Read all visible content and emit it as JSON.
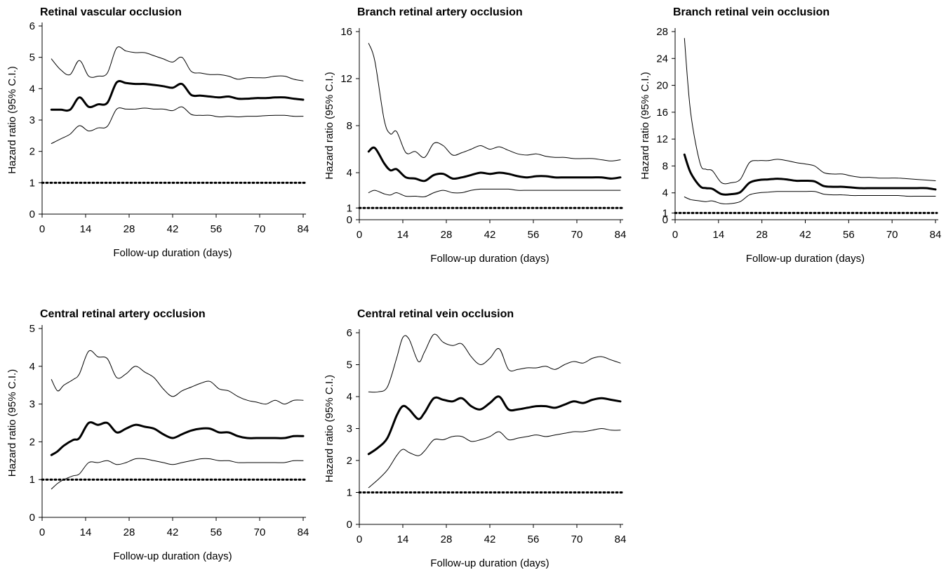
{
  "chart_data": [
    {
      "type": "line",
      "title": "Retinal vascular occlusion",
      "xlabel": "Follow-up duration (days)",
      "ylabel": "Hazard ratio (95% C.I.)",
      "xlim": [
        0,
        84
      ],
      "ylim": [
        0,
        6
      ],
      "xticks": [
        0,
        14,
        28,
        42,
        56,
        70,
        84
      ],
      "yticks": [
        0,
        1,
        2,
        3,
        4,
        5,
        6
      ],
      "reference_line": 1,
      "grid": false,
      "x": [
        3,
        6,
        9,
        12,
        15,
        18,
        21,
        24,
        27,
        30,
        33,
        36,
        39,
        42,
        45,
        48,
        51,
        54,
        57,
        60,
        63,
        66,
        69,
        72,
        75,
        78,
        81,
        84
      ],
      "series": [
        {
          "values": [
            4.95,
            4.6,
            4.45,
            4.9,
            4.4,
            4.4,
            4.5,
            5.3,
            5.2,
            5.15,
            5.15,
            5.05,
            4.95,
            4.85,
            5.0,
            4.55,
            4.5,
            4.45,
            4.45,
            4.4,
            4.3,
            4.35,
            4.35,
            4.35,
            4.4,
            4.4,
            4.3,
            4.25
          ]
        },
        {
          "values": [
            3.33,
            3.33,
            3.33,
            3.72,
            3.42,
            3.5,
            3.55,
            4.2,
            4.18,
            4.15,
            4.15,
            4.12,
            4.08,
            4.03,
            4.15,
            3.8,
            3.78,
            3.75,
            3.72,
            3.75,
            3.68,
            3.68,
            3.7,
            3.7,
            3.72,
            3.72,
            3.68,
            3.65
          ]
        },
        {
          "values": [
            2.25,
            2.4,
            2.55,
            2.82,
            2.65,
            2.75,
            2.8,
            3.35,
            3.35,
            3.35,
            3.38,
            3.35,
            3.35,
            3.3,
            3.42,
            3.18,
            3.15,
            3.15,
            3.1,
            3.12,
            3.1,
            3.12,
            3.12,
            3.14,
            3.15,
            3.15,
            3.12,
            3.12
          ]
        }
      ]
    },
    {
      "type": "line",
      "title": "Branch retinal artery occlusion",
      "xlabel": "Follow-up duration (days)",
      "ylabel": "Hazard ratio (95% C.I.)",
      "xlim": [
        0,
        84
      ],
      "ylim": [
        0,
        16
      ],
      "xticks": [
        0,
        14,
        28,
        42,
        56,
        70,
        84
      ],
      "yticks": [
        0,
        1,
        4,
        8,
        12,
        16
      ],
      "reference_line": 1,
      "grid": false,
      "x": [
        3,
        5,
        8,
        10,
        12,
        15,
        18,
        21,
        24,
        27,
        30,
        33,
        36,
        39,
        42,
        45,
        48,
        51,
        54,
        57,
        60,
        63,
        66,
        69,
        72,
        75,
        78,
        81,
        84
      ],
      "series": [
        {
          "values": [
            15.0,
            13.5,
            8.5,
            7.3,
            7.5,
            5.7,
            5.8,
            5.3,
            6.5,
            6.3,
            5.5,
            5.7,
            6.0,
            6.3,
            6.0,
            6.2,
            5.9,
            5.6,
            5.5,
            5.6,
            5.4,
            5.3,
            5.3,
            5.2,
            5.2,
            5.2,
            5.1,
            5.0,
            5.1
          ]
        },
        {
          "values": [
            5.8,
            6.1,
            4.8,
            4.2,
            4.3,
            3.6,
            3.5,
            3.3,
            3.8,
            3.9,
            3.5,
            3.6,
            3.8,
            4.0,
            3.9,
            4.0,
            3.9,
            3.7,
            3.6,
            3.7,
            3.7,
            3.6,
            3.6,
            3.6,
            3.6,
            3.6,
            3.6,
            3.5,
            3.6
          ]
        },
        {
          "values": [
            2.3,
            2.5,
            2.2,
            2.1,
            2.3,
            2.0,
            2.0,
            1.95,
            2.3,
            2.5,
            2.3,
            2.3,
            2.5,
            2.6,
            2.6,
            2.6,
            2.6,
            2.5,
            2.5,
            2.5,
            2.5,
            2.5,
            2.5,
            2.5,
            2.5,
            2.5,
            2.5,
            2.5,
            2.5
          ]
        }
      ]
    },
    {
      "type": "line",
      "title": "Branch retinal vein occlusion",
      "xlabel": "Follow-up duration (days)",
      "ylabel": "Hazard ratio (95% C.I.)",
      "xlim": [
        0,
        84
      ],
      "ylim": [
        0,
        28
      ],
      "xticks": [
        0,
        14,
        28,
        42,
        56,
        70,
        84
      ],
      "yticks": [
        0,
        1,
        4,
        8,
        12,
        16,
        20,
        24,
        28
      ],
      "reference_line": 1,
      "grid": false,
      "x": [
        3,
        5,
        8,
        10,
        12,
        15,
        18,
        21,
        24,
        27,
        30,
        33,
        36,
        39,
        42,
        45,
        48,
        51,
        54,
        57,
        60,
        63,
        66,
        69,
        72,
        75,
        78,
        81,
        84
      ],
      "series": [
        {
          "values": [
            27.0,
            16.0,
            8.5,
            7.5,
            7.3,
            5.5,
            5.5,
            6.0,
            8.5,
            8.8,
            8.8,
            9.0,
            8.8,
            8.5,
            8.3,
            8.0,
            7.0,
            6.8,
            6.8,
            6.5,
            6.3,
            6.3,
            6.2,
            6.2,
            6.2,
            6.1,
            6.0,
            5.9,
            5.8
          ]
        },
        {
          "values": [
            9.7,
            7.0,
            5.0,
            4.7,
            4.6,
            3.8,
            3.8,
            4.1,
            5.5,
            5.9,
            6.0,
            6.1,
            6.0,
            5.8,
            5.8,
            5.7,
            5.0,
            4.9,
            4.9,
            4.8,
            4.7,
            4.7,
            4.7,
            4.7,
            4.7,
            4.7,
            4.7,
            4.7,
            4.5
          ]
        },
        {
          "values": [
            3.4,
            3.0,
            2.8,
            2.7,
            2.8,
            2.4,
            2.4,
            2.7,
            3.7,
            4.0,
            4.1,
            4.2,
            4.2,
            4.2,
            4.2,
            4.2,
            3.8,
            3.7,
            3.7,
            3.6,
            3.6,
            3.6,
            3.6,
            3.6,
            3.6,
            3.5,
            3.5,
            3.5,
            3.5
          ]
        }
      ]
    },
    {
      "type": "line",
      "title": "Central retinal artery occlusion",
      "xlabel": "Follow-up duration (days)",
      "ylabel": "Hazard ratio (95% C.I.)",
      "xlim": [
        0,
        84
      ],
      "ylim": [
        0,
        5
      ],
      "xticks": [
        0,
        14,
        28,
        42,
        56,
        70,
        84
      ],
      "yticks": [
        0,
        1,
        2,
        3,
        4,
        5
      ],
      "reference_line": 1,
      "grid": false,
      "x": [
        3,
        5,
        7,
        10,
        12,
        15,
        18,
        21,
        24,
        27,
        30,
        33,
        36,
        39,
        42,
        45,
        48,
        51,
        54,
        57,
        60,
        63,
        66,
        69,
        72,
        75,
        78,
        81,
        84
      ],
      "series": [
        {
          "values": [
            3.65,
            3.35,
            3.5,
            3.65,
            3.8,
            4.4,
            4.25,
            4.2,
            3.7,
            3.8,
            4.0,
            3.85,
            3.7,
            3.4,
            3.2,
            3.35,
            3.45,
            3.55,
            3.6,
            3.4,
            3.35,
            3.2,
            3.1,
            3.05,
            3.0,
            3.1,
            3.0,
            3.1,
            3.1
          ]
        },
        {
          "values": [
            1.65,
            1.75,
            1.9,
            2.05,
            2.1,
            2.5,
            2.45,
            2.5,
            2.25,
            2.35,
            2.45,
            2.4,
            2.35,
            2.2,
            2.1,
            2.2,
            2.3,
            2.35,
            2.35,
            2.25,
            2.25,
            2.15,
            2.1,
            2.1,
            2.1,
            2.1,
            2.1,
            2.15,
            2.15
          ]
        },
        {
          "values": [
            0.75,
            0.9,
            1.0,
            1.1,
            1.15,
            1.45,
            1.45,
            1.5,
            1.4,
            1.45,
            1.55,
            1.55,
            1.5,
            1.45,
            1.4,
            1.45,
            1.5,
            1.55,
            1.55,
            1.5,
            1.5,
            1.45,
            1.45,
            1.45,
            1.45,
            1.45,
            1.45,
            1.5,
            1.5
          ]
        }
      ]
    },
    {
      "type": "line",
      "title": "Central retinal vein occlusion",
      "xlabel": "Follow-up duration (days)",
      "ylabel": "Hazard ratio (95% C.I.)",
      "xlim": [
        0,
        84
      ],
      "ylim": [
        0,
        6
      ],
      "xticks": [
        0,
        14,
        28,
        42,
        56,
        70,
        84
      ],
      "yticks": [
        0,
        1,
        2,
        3,
        4,
        5,
        6
      ],
      "reference_line": 1,
      "grid": false,
      "x": [
        3,
        6,
        9,
        12,
        14,
        16,
        19,
        21,
        24,
        27,
        30,
        33,
        36,
        39,
        42,
        45,
        48,
        51,
        54,
        57,
        60,
        63,
        66,
        69,
        72,
        75,
        78,
        81,
        84
      ],
      "series": [
        {
          "values": [
            4.15,
            4.15,
            4.3,
            5.2,
            5.85,
            5.8,
            5.1,
            5.4,
            5.95,
            5.7,
            5.6,
            5.65,
            5.25,
            5.0,
            5.2,
            5.5,
            4.85,
            4.85,
            4.9,
            4.9,
            4.95,
            4.85,
            5.0,
            5.1,
            5.05,
            5.2,
            5.25,
            5.15,
            5.05
          ]
        },
        {
          "values": [
            2.2,
            2.4,
            2.7,
            3.4,
            3.7,
            3.6,
            3.3,
            3.5,
            3.95,
            3.9,
            3.85,
            3.95,
            3.7,
            3.6,
            3.8,
            4.0,
            3.6,
            3.6,
            3.65,
            3.7,
            3.7,
            3.65,
            3.75,
            3.85,
            3.8,
            3.9,
            3.95,
            3.9,
            3.85
          ]
        },
        {
          "values": [
            1.15,
            1.4,
            1.7,
            2.15,
            2.35,
            2.25,
            2.15,
            2.3,
            2.65,
            2.65,
            2.75,
            2.75,
            2.6,
            2.65,
            2.75,
            2.9,
            2.65,
            2.7,
            2.75,
            2.8,
            2.75,
            2.8,
            2.85,
            2.9,
            2.9,
            2.95,
            3.0,
            2.95,
            2.95
          ]
        }
      ]
    }
  ]
}
